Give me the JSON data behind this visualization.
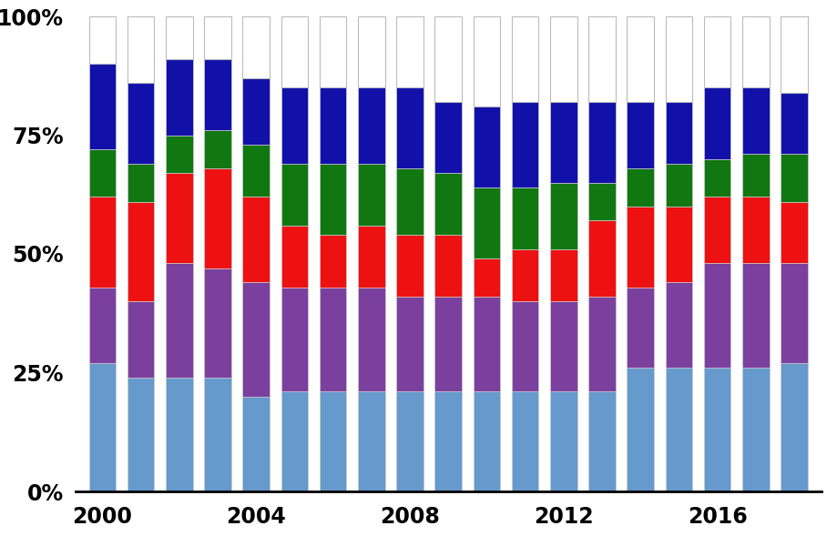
{
  "years": [
    2000,
    2001,
    2002,
    2003,
    2004,
    2005,
    2006,
    2007,
    2008,
    2009,
    2010,
    2011,
    2012,
    2013,
    2014,
    2015,
    2016,
    2017,
    2018
  ],
  "segments": {
    "light_blue": [
      27,
      24,
      24,
      24,
      20,
      21,
      21,
      21,
      21,
      21,
      21,
      21,
      21,
      21,
      26,
      26,
      26,
      26,
      27
    ],
    "purple": [
      16,
      16,
      24,
      23,
      24,
      22,
      22,
      22,
      20,
      20,
      20,
      19,
      19,
      20,
      17,
      18,
      22,
      22,
      21
    ],
    "red": [
      19,
      21,
      19,
      21,
      18,
      13,
      11,
      13,
      13,
      13,
      8,
      11,
      11,
      16,
      17,
      16,
      14,
      14,
      13
    ],
    "green": [
      10,
      8,
      8,
      8,
      11,
      13,
      15,
      13,
      14,
      13,
      15,
      13,
      14,
      8,
      8,
      9,
      8,
      9,
      10
    ],
    "dark_blue": [
      18,
      17,
      16,
      15,
      14,
      16,
      16,
      16,
      17,
      15,
      17,
      18,
      17,
      17,
      14,
      13,
      15,
      14,
      13
    ],
    "white": [
      10,
      14,
      9,
      9,
      13,
      15,
      15,
      15,
      15,
      18,
      19,
      18,
      18,
      18,
      18,
      18,
      15,
      15,
      16
    ]
  },
  "colors": {
    "light_blue": "#6699CC",
    "purple": "#7B3F9E",
    "red": "#EE1111",
    "green": "#117711",
    "dark_blue": "#1111AA",
    "white": "#FFFFFF"
  },
  "n_years": 19,
  "xlim_left": -0.7,
  "xlim_right": 18.7,
  "ylim": [
    0,
    100
  ],
  "ytick_labels": [
    "0%",
    "25%",
    "50%",
    "75%",
    "100%"
  ],
  "ytick_values": [
    0,
    25,
    50,
    75,
    100
  ],
  "xtick_labels": [
    "2000",
    "2004",
    "2008",
    "2012",
    "2016"
  ],
  "xtick_values": [
    0,
    4,
    8,
    12,
    16
  ],
  "bar_width": 0.7,
  "background_color": "#FFFFFF",
  "bar_edge_color": "#CCCCCC",
  "spine_color": "#000000",
  "tick_fontsize": 17,
  "tick_fontweight": "bold"
}
